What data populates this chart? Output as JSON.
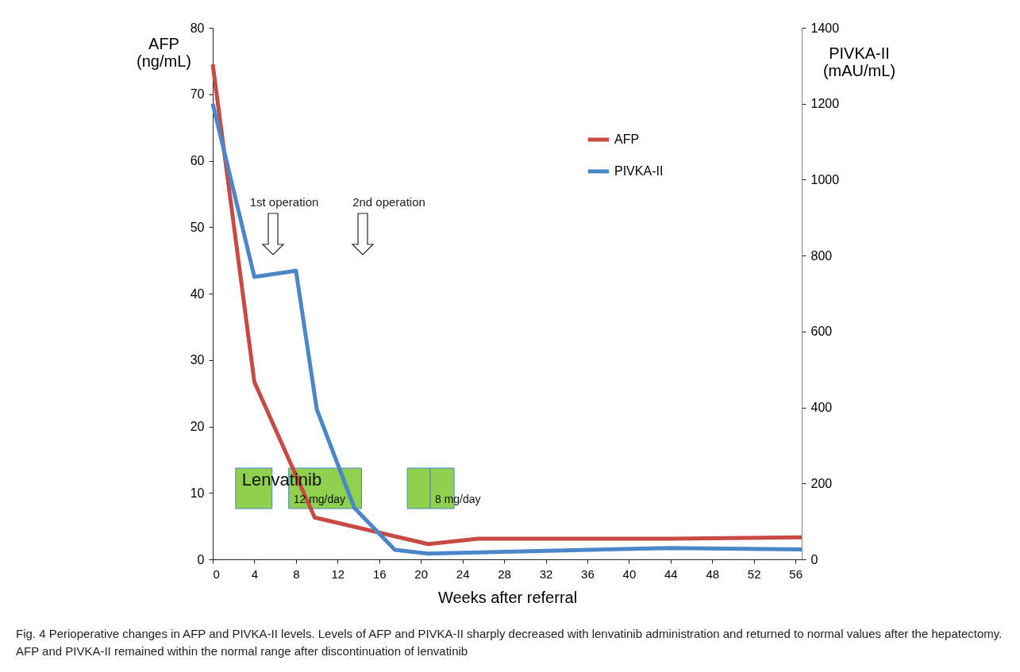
{
  "chart_data": {
    "type": "line",
    "xlabel": "Weeks after referral",
    "ylabel": "AFP (ng/mL)",
    "y2label": "PIVKA-II (mAU/mL)",
    "xlim": [
      0,
      56.6
    ],
    "xticks": [
      0,
      4,
      8,
      12,
      16,
      20,
      24,
      28,
      32,
      36,
      40,
      44,
      48,
      52,
      56
    ],
    "ylim": [
      0,
      80
    ],
    "yticks": [
      0,
      10,
      20,
      30,
      40,
      50,
      60,
      70,
      80
    ],
    "y2lim": [
      0,
      1400
    ],
    "y2ticks": [
      0,
      200,
      400,
      600,
      800,
      1000,
      1200,
      1400
    ],
    "grid": false,
    "legend": "top right",
    "line_style": "solid",
    "marker": "none",
    "series": [
      {
        "name": "AFP",
        "color": "#c84a45",
        "x": [
          0,
          4,
          9.8,
          20.7,
          25.5,
          44,
          56.6
        ],
        "values": [
          74.5,
          26.7,
          6.3,
          2.3,
          3.1,
          3.1,
          3.3
        ]
      },
      {
        "name": "PIVKA-II",
        "color": "#4a86c8",
        "axis": "y2",
        "x": [
          0,
          4,
          8,
          10,
          13.6,
          17.5,
          20.7,
          44,
          56.6
        ],
        "values": [
          1200,
          744,
          760,
          395,
          136,
          25,
          15,
          30,
          26
        ]
      }
    ],
    "bands": [
      {
        "axis": "x",
        "from": 2.2,
        "to": 5.7,
        "label": "Lenvatinib",
        "color": "#8fd14f"
      },
      {
        "axis": "x",
        "from": 7.3,
        "to": 14.3,
        "label": "12 mg/day",
        "color": "#8fd14f"
      },
      {
        "axis": "x",
        "from": 18.7,
        "to": 20.9,
        "label": null,
        "color": "#8fd14f"
      },
      {
        "axis": "x",
        "from": 20.9,
        "to": 23.2,
        "label": "8 mg/day",
        "color": "#8fd14f"
      }
    ],
    "annotations": [
      "1st operation",
      "2nd operation",
      "Fig. 4  Perioperative changes in AFP and PIVKA-II levels. Levels of AFP and PIVKA-II sharply decreased with lenvatinib administration and returned to normal values after the hepatectomy. AFP and PIVKA-II remained within the normal range after discontinuation of lenvatinib"
    ]
  }
}
